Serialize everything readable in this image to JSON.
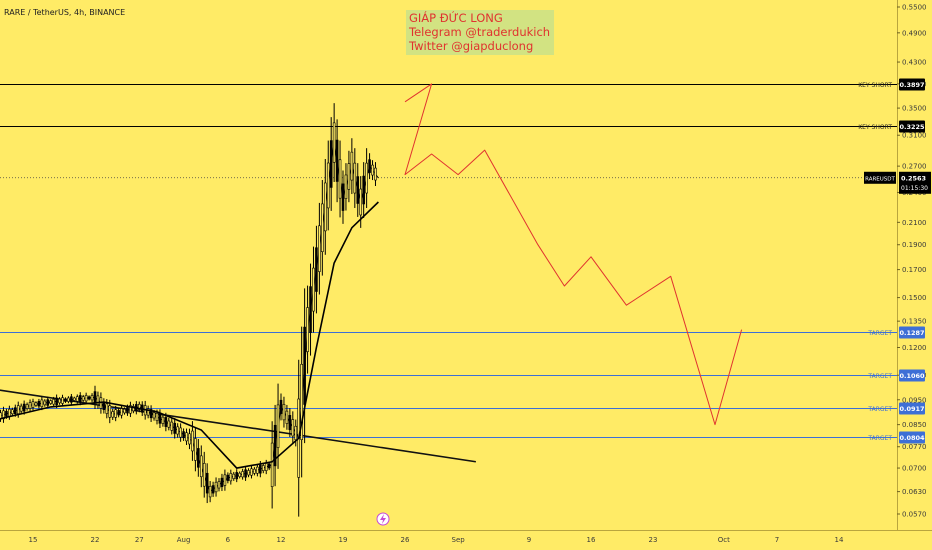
{
  "header": {
    "title": "RARE / TetherUS, 4h, BINANCE"
  },
  "watermark": {
    "line1": "GIÁP ĐỨC LONG",
    "line2": "Telegram @traderdukich",
    "line3": "Twitter @giapduclong"
  },
  "colors": {
    "background": "#ffeb66",
    "candles": "#000000",
    "moving_average": "#000000",
    "target_lines": "#3d6fd6",
    "key_lines": "#000000",
    "forecast_path": "#e0332f",
    "watermark_bg": "#d2e382"
  },
  "chart_data": {
    "type": "line",
    "symbol": "RARE / TetherUS",
    "timeframe": "4h",
    "exchange": "BINANCE",
    "y_ticks": [
      "0.5500",
      "0.4900",
      "0.4300",
      "0.3900",
      "0.3500",
      "0.3100",
      "0.2700",
      "0.2400",
      "0.2100",
      "0.1900",
      "0.1700",
      "0.1500",
      "0.1350",
      "0.1200",
      "0.1060",
      "0.0950",
      "0.0850",
      "0.0770",
      "0.0700",
      "0.0630",
      "0.0570"
    ],
    "x_ticks": [
      "15",
      "22",
      "27",
      "Aug",
      "6",
      "12",
      "19",
      "26",
      "Sep",
      "9",
      "16",
      "23",
      "Oct",
      "7",
      "14"
    ],
    "horizontal_levels": [
      {
        "label": "KEY SHORT",
        "value": "0.3897",
        "kind": "key"
      },
      {
        "label": "KEY SHORT",
        "value": "0.3225",
        "kind": "key"
      },
      {
        "label": "TARGET",
        "value": "0.1287",
        "kind": "target"
      },
      {
        "label": "TARGET",
        "value": "0.1060",
        "kind": "target"
      },
      {
        "label": "TARGET",
        "value": "0.0917",
        "kind": "target"
      },
      {
        "label": "TARGET",
        "value": "0.0804",
        "kind": "target"
      }
    ],
    "current_price": {
      "symbol": "RAREUSDT",
      "value": "0.2563",
      "countdown": "01:15:30"
    },
    "price_path": [
      {
        "date": "2021-07-11",
        "close": 0.088
      },
      {
        "date": "2021-07-15",
        "close": 0.093
      },
      {
        "date": "2021-07-19",
        "close": 0.095
      },
      {
        "date": "2021-07-22",
        "close": 0.096
      },
      {
        "date": "2021-07-24",
        "close": 0.089
      },
      {
        "date": "2021-07-27",
        "close": 0.092
      },
      {
        "date": "2021-07-30",
        "close": 0.086
      },
      {
        "date": "2021-08-02",
        "close": 0.079
      },
      {
        "date": "2021-08-04",
        "close": 0.063
      },
      {
        "date": "2021-08-06",
        "close": 0.067
      },
      {
        "date": "2021-08-09",
        "close": 0.069
      },
      {
        "date": "2021-08-11",
        "close": 0.071
      },
      {
        "date": "2021-08-12",
        "close": 0.092
      },
      {
        "date": "2021-08-14",
        "close": 0.08
      },
      {
        "date": "2021-08-15",
        "close": 0.13
      },
      {
        "date": "2021-08-16",
        "close": 0.17
      },
      {
        "date": "2021-08-17",
        "close": 0.225
      },
      {
        "date": "2021-08-18",
        "close": 0.3
      },
      {
        "date": "2021-08-19",
        "close": 0.235
      },
      {
        "date": "2021-08-20",
        "close": 0.27
      },
      {
        "date": "2021-08-21",
        "close": 0.23
      },
      {
        "date": "2021-08-22",
        "close": 0.27
      },
      {
        "date": "2021-08-23",
        "close": 0.256
      }
    ],
    "moving_average": [
      {
        "date": "2021-07-11",
        "value": 0.087
      },
      {
        "date": "2021-07-17",
        "value": 0.092
      },
      {
        "date": "2021-07-23",
        "value": 0.094
      },
      {
        "date": "2021-07-29",
        "value": 0.09
      },
      {
        "date": "2021-08-03",
        "value": 0.083
      },
      {
        "date": "2021-08-07",
        "value": 0.07
      },
      {
        "date": "2021-08-11",
        "value": 0.072
      },
      {
        "date": "2021-08-14",
        "value": 0.08
      },
      {
        "date": "2021-08-16",
        "value": 0.12
      },
      {
        "date": "2021-08-18",
        "value": 0.175
      },
      {
        "date": "2021-08-20",
        "value": 0.205
      },
      {
        "date": "2021-08-23",
        "value": 0.23
      }
    ],
    "trendline": [
      {
        "date": "2021-07-11",
        "value": 0.1
      },
      {
        "date": "2021-09-03",
        "value": 0.072
      }
    ],
    "forecast_path": [
      {
        "date": "2021-08-26",
        "value": 0.36
      },
      {
        "date": "2021-08-29",
        "value": 0.39
      },
      {
        "date": "2021-08-26",
        "value": 0.26
      },
      {
        "date": "2021-08-29",
        "value": 0.285
      },
      {
        "date": "2021-09-01",
        "value": 0.26
      },
      {
        "date": "2021-09-04",
        "value": 0.29
      },
      {
        "date": "2021-09-10",
        "value": 0.19
      },
      {
        "date": "2021-09-13",
        "value": 0.158
      },
      {
        "date": "2021-09-16",
        "value": 0.18
      },
      {
        "date": "2021-09-20",
        "value": 0.145
      },
      {
        "date": "2021-09-25",
        "value": 0.165
      },
      {
        "date": "2021-09-30",
        "value": 0.085
      },
      {
        "date": "2021-10-03",
        "value": 0.13
      }
    ],
    "grid": false,
    "log_scale": true
  }
}
